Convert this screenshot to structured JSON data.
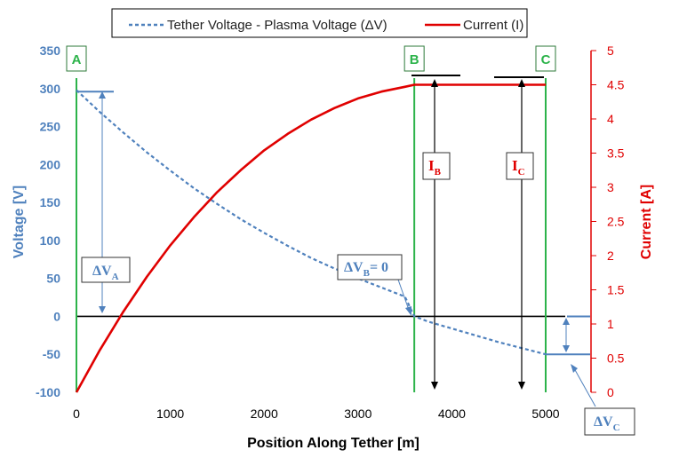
{
  "chart_data": {
    "type": "line",
    "xlabel": "Position Along Tether [m]",
    "ylabel": "Voltage [V]",
    "y2label": "Current [A]",
    "xlim": [
      0,
      5000
    ],
    "xticks": [
      0,
      1000,
      2000,
      3000,
      4000,
      5000
    ],
    "ylim": [
      -100,
      350
    ],
    "yticks": [
      -100,
      -50,
      0,
      50,
      100,
      150,
      200,
      250,
      300,
      350
    ],
    "y2lim": [
      0,
      5
    ],
    "y2ticks": [
      0,
      0.5,
      1,
      1.5,
      2,
      2.5,
      3,
      3.5,
      4,
      4.5,
      5
    ],
    "legend_position": "top",
    "series": [
      {
        "name": "Tether Voltage - Plasma Voltage (ΔV)",
        "axis": "left",
        "color": "#4f81bd",
        "style": "dashed",
        "x": [
          0,
          250,
          500,
          750,
          1000,
          1250,
          1500,
          1750,
          2000,
          2250,
          2500,
          2750,
          3000,
          3250,
          3500,
          3600,
          3750,
          4000,
          4250,
          4500,
          4750,
          5000
        ],
        "y": [
          298,
          269,
          242,
          216,
          192,
          169,
          148,
          128,
          110,
          93,
          77,
          63,
          50,
          38,
          26,
          0,
          -7,
          -16,
          -25,
          -34,
          -42,
          -50
        ]
      },
      {
        "name": "Current (I)",
        "axis": "right",
        "color": "#e00000",
        "style": "solid",
        "x": [
          0,
          250,
          500,
          750,
          1000,
          1250,
          1500,
          1750,
          2000,
          2250,
          2500,
          2750,
          3000,
          3250,
          3500,
          3600,
          3750,
          4000,
          4250,
          4500,
          4750,
          5000
        ],
        "y": [
          0,
          0.62,
          1.18,
          1.69,
          2.15,
          2.56,
          2.93,
          3.25,
          3.54,
          3.78,
          3.99,
          4.16,
          4.3,
          4.4,
          4.47,
          4.5,
          4.5,
          4.5,
          4.5,
          4.5,
          4.5,
          4.5
        ]
      }
    ],
    "zero_line": 0,
    "markers": [
      {
        "label": "A",
        "x": 0,
        "color": "#2cb34a"
      },
      {
        "label": "B",
        "x": 3600,
        "color": "#2cb34a"
      },
      {
        "label": "C",
        "x": 5000,
        "color": "#2cb34a"
      }
    ],
    "annotations": {
      "dVA": {
        "main": "ΔV",
        "sub": "A"
      },
      "dVB": {
        "main": "ΔV",
        "sub": "B",
        "suffix": "= 0"
      },
      "dVC": {
        "main": "ΔV",
        "sub": "C"
      },
      "IB": {
        "main": "I",
        "sub": "B"
      },
      "IC": {
        "main": "I",
        "sub": "C"
      }
    }
  }
}
